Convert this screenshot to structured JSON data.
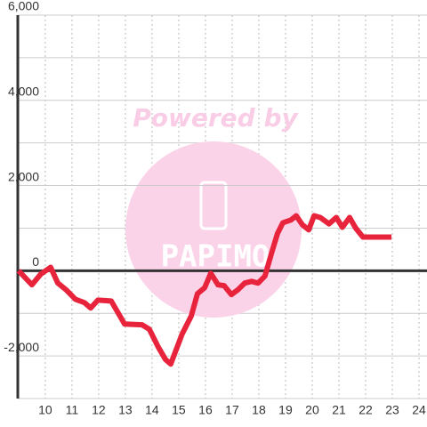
{
  "chart_data": {
    "type": "line",
    "annotations": [
      "Powered by",
      "PAPIMO"
    ],
    "x": [
      9,
      9.5,
      9.83,
      10.2,
      10.47,
      10.8,
      11.13,
      11.47,
      11.7,
      11.97,
      12.47,
      12.97,
      13.63,
      13.9,
      14.23,
      14.5,
      14.7,
      15.13,
      15.47,
      15.7,
      15.97,
      16.2,
      16.47,
      16.7,
      16.97,
      17.23,
      17.47,
      17.73,
      17.97,
      18.23,
      18.47,
      18.7,
      18.9,
      19.2,
      19.4,
      19.63,
      19.87,
      20.07,
      20.3,
      20.63,
      20.9,
      21.13,
      21.4,
      21.63,
      21.9,
      22.97
    ],
    "series": [
      {
        "color": "#e8243c",
        "values": [
          0,
          -330,
          -80,
          80,
          -290,
          -460,
          -670,
          -750,
          -875,
          -690,
          -710,
          -1250,
          -1270,
          -1375,
          -1790,
          -2080,
          -2190,
          -1480,
          -1060,
          -540,
          -400,
          -60,
          -330,
          -350,
          -560,
          -440,
          -290,
          -250,
          -290,
          -125,
          400,
          875,
          1125,
          1190,
          1290,
          1080,
          960,
          1290,
          1250,
          1100,
          1250,
          1020,
          1250,
          1000,
          790,
          790
        ]
      }
    ],
    "xlim": [
      8.97,
      24.3
    ],
    "xticks": [
      10,
      11,
      12,
      13,
      14,
      15,
      16,
      17,
      18,
      19,
      20,
      21,
      22,
      23,
      24
    ],
    "ylim": [
      -3000,
      6000
    ],
    "yticks": [
      {
        "value": -2000,
        "label": "-2,000"
      },
      0,
      {
        "value": 2000,
        "label": "2,000"
      },
      {
        "value": 4000,
        "label": "4,000"
      },
      {
        "value": 6000,
        "label": "6,000"
      }
    ],
    "y_minor_ticks": [
      -3000,
      -1000,
      1000,
      3000,
      5000
    ],
    "grid": true
  }
}
